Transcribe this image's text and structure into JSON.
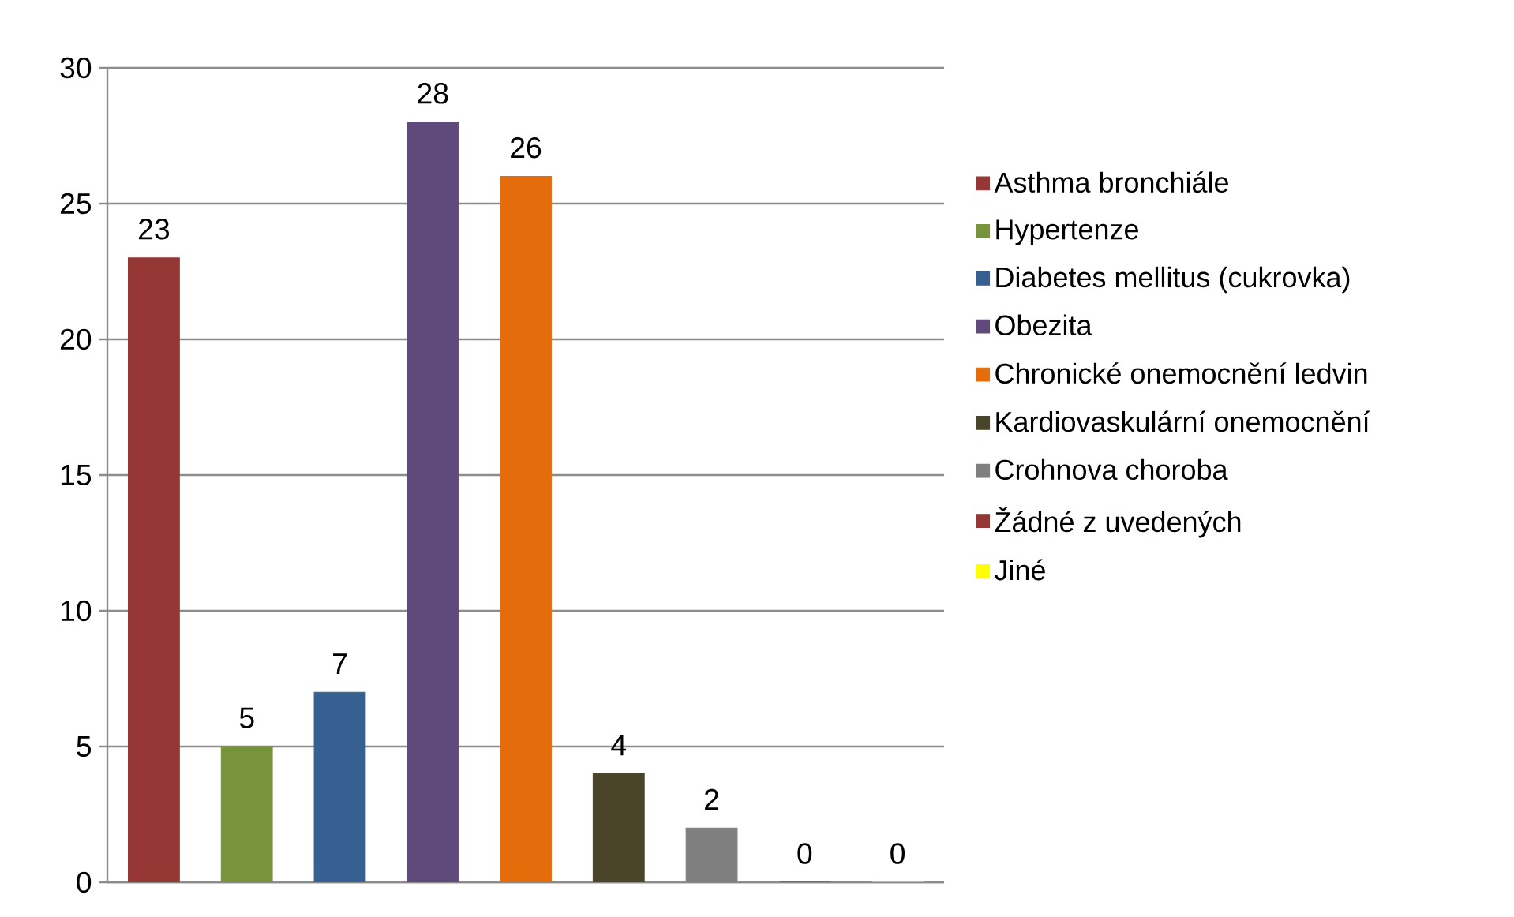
{
  "chart_data": {
    "type": "bar",
    "categories": [
      null,
      null,
      null,
      null,
      null,
      null,
      null,
      null,
      null
    ],
    "series": [
      {
        "name": "Asthma bronchiále",
        "color": "#953735",
        "values": [
          23,
          null,
          null,
          null,
          null,
          null,
          null,
          null,
          null
        ]
      },
      {
        "name": "Hypertenze",
        "color": "#77933c",
        "values": [
          null,
          5,
          null,
          null,
          null,
          null,
          null,
          null,
          null
        ]
      },
      {
        "name": "Diabetes mellitus (cukrovka)",
        "color": "#376092",
        "values": [
          null,
          null,
          7,
          null,
          null,
          null,
          null,
          null,
          null
        ]
      },
      {
        "name": "Obezita",
        "color": "#604a7b",
        "values": [
          null,
          null,
          null,
          28,
          null,
          null,
          null,
          null,
          null
        ]
      },
      {
        "name": "Chronické onemocnění ledvin",
        "color": "#e46c0a",
        "values": [
          null,
          null,
          null,
          null,
          26,
          null,
          null,
          null,
          null
        ]
      },
      {
        "name": "Kardiovaskulární onemocnění",
        "color": "#4a452a",
        "values": [
          null,
          null,
          null,
          null,
          null,
          4,
          null,
          null,
          null
        ]
      },
      {
        "name": "Crohnova choroba",
        "color": "#7f7f7f",
        "values": [
          null,
          null,
          null,
          null,
          null,
          null,
          2,
          null,
          null
        ]
      },
      {
        "name": "Žádné z uvedených",
        "color": "#953735",
        "values": [
          null,
          null,
          null,
          null,
          null,
          null,
          null,
          0,
          null
        ]
      },
      {
        "name": "Jiné",
        "color": "#ffff00",
        "values": [
          null,
          null,
          null,
          null,
          null,
          null,
          null,
          null,
          0
        ]
      }
    ],
    "ylim": [
      0,
      30
    ],
    "yticks": [
      0,
      5,
      10,
      15,
      20,
      25,
      30
    ],
    "grid": "y",
    "legend": "right",
    "data_labels": true,
    "tick_labels": "y"
  }
}
